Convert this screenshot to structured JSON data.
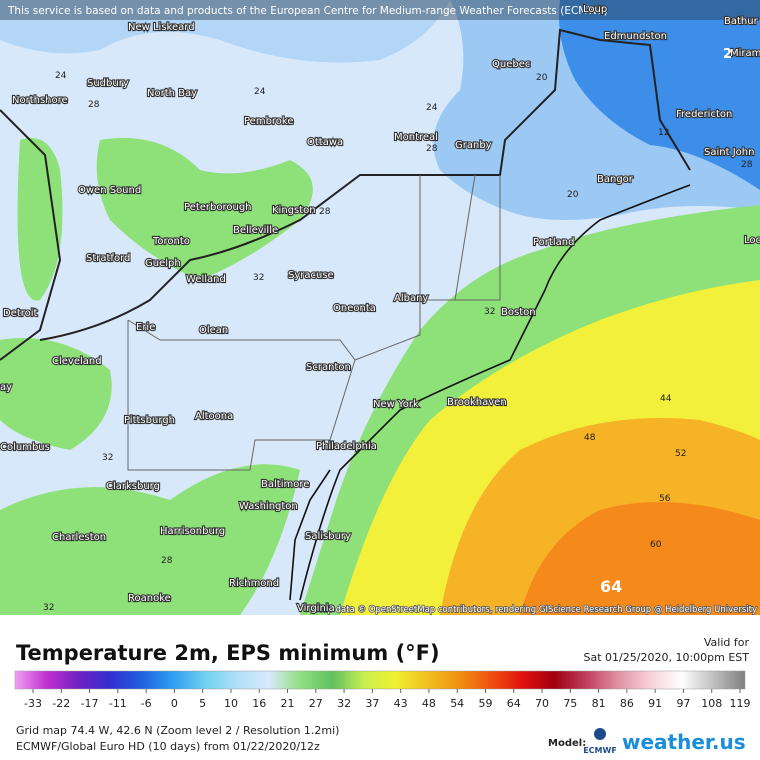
{
  "banner": "This service is based on data and products of the European Centre for Medium-range Weather Forecasts (ECMWF)",
  "attribution": "Map data © OpenStreetMap contributors, rendering GIScience Research Group @ Heidelberg University",
  "cities": [
    "New Liskeard",
    "Sudbury",
    "North Bay",
    "Northshore",
    "Pembroke",
    "Ottawa",
    "Montreal",
    "Granby",
    "Quebec",
    "Edmundston",
    "Fredericton",
    "Saint John",
    "Bangor",
    "Portland",
    "Boston",
    "Albany",
    "Syracuse",
    "Oneonta",
    "Kingston",
    "Belleville",
    "Peterborough",
    "Owen Sound",
    "Toronto",
    "Guelph",
    "Stratford",
    "Welland",
    "Detroit",
    "Erie",
    "Olean",
    "Cleveland",
    "Scranton",
    "New York",
    "Brookhaven",
    "Pittsburgh",
    "Altoona",
    "Philadelphia",
    "Baltimore",
    "Washington",
    "Columbus",
    "Clarksburg",
    "Harrisonburg",
    "Charleston",
    "Salisbury",
    "Richmond",
    "Roanoke",
    "Virginia",
    "Bathur",
    "Miram",
    "Loup",
    "Loc",
    "ay"
  ],
  "contours": [
    24,
    28,
    24,
    24,
    28,
    28,
    32,
    32,
    20,
    20,
    12,
    28,
    32,
    28,
    32,
    44,
    48,
    52,
    56,
    60,
    64,
    2
  ],
  "legend": {
    "title": "Temperature 2m, EPS minimum (°F)",
    "valid_label": "Valid for",
    "valid_time": "Sat 01/25/2020, 10:00pm EST",
    "colorbar": {
      "ticks": [
        -33,
        -22,
        -17,
        -11,
        -6,
        0,
        5,
        10,
        16,
        21,
        27,
        32,
        37,
        43,
        48,
        54,
        59,
        64,
        70,
        75,
        81,
        86,
        91,
        97,
        108,
        119
      ],
      "colors": [
        "#f0a0f0",
        "#c030d0",
        "#7020c0",
        "#3030d0",
        "#2060e0",
        "#30a0f0",
        "#70d0f0",
        "#b0e0f8",
        "#d8eafc",
        "#90e080",
        "#60c060",
        "#c8f050",
        "#f0f030",
        "#f0c020",
        "#f09010",
        "#f05010",
        "#e01010",
        "#a00010",
        "#c04060",
        "#e090a0",
        "#f8d0d8",
        "#ffffff",
        "#c0c0c0",
        "#808080"
      ]
    }
  },
  "footer": {
    "grid": "Grid map 74.4 W, 42.6 N (Zoom level 2 / Resolution 1.2mi)",
    "source": "ECMWF/Global Euro HD (10 days) from 01/22/2020/12z",
    "model_label": "Model:",
    "model": "ECMWF",
    "brand": "weather.us"
  }
}
